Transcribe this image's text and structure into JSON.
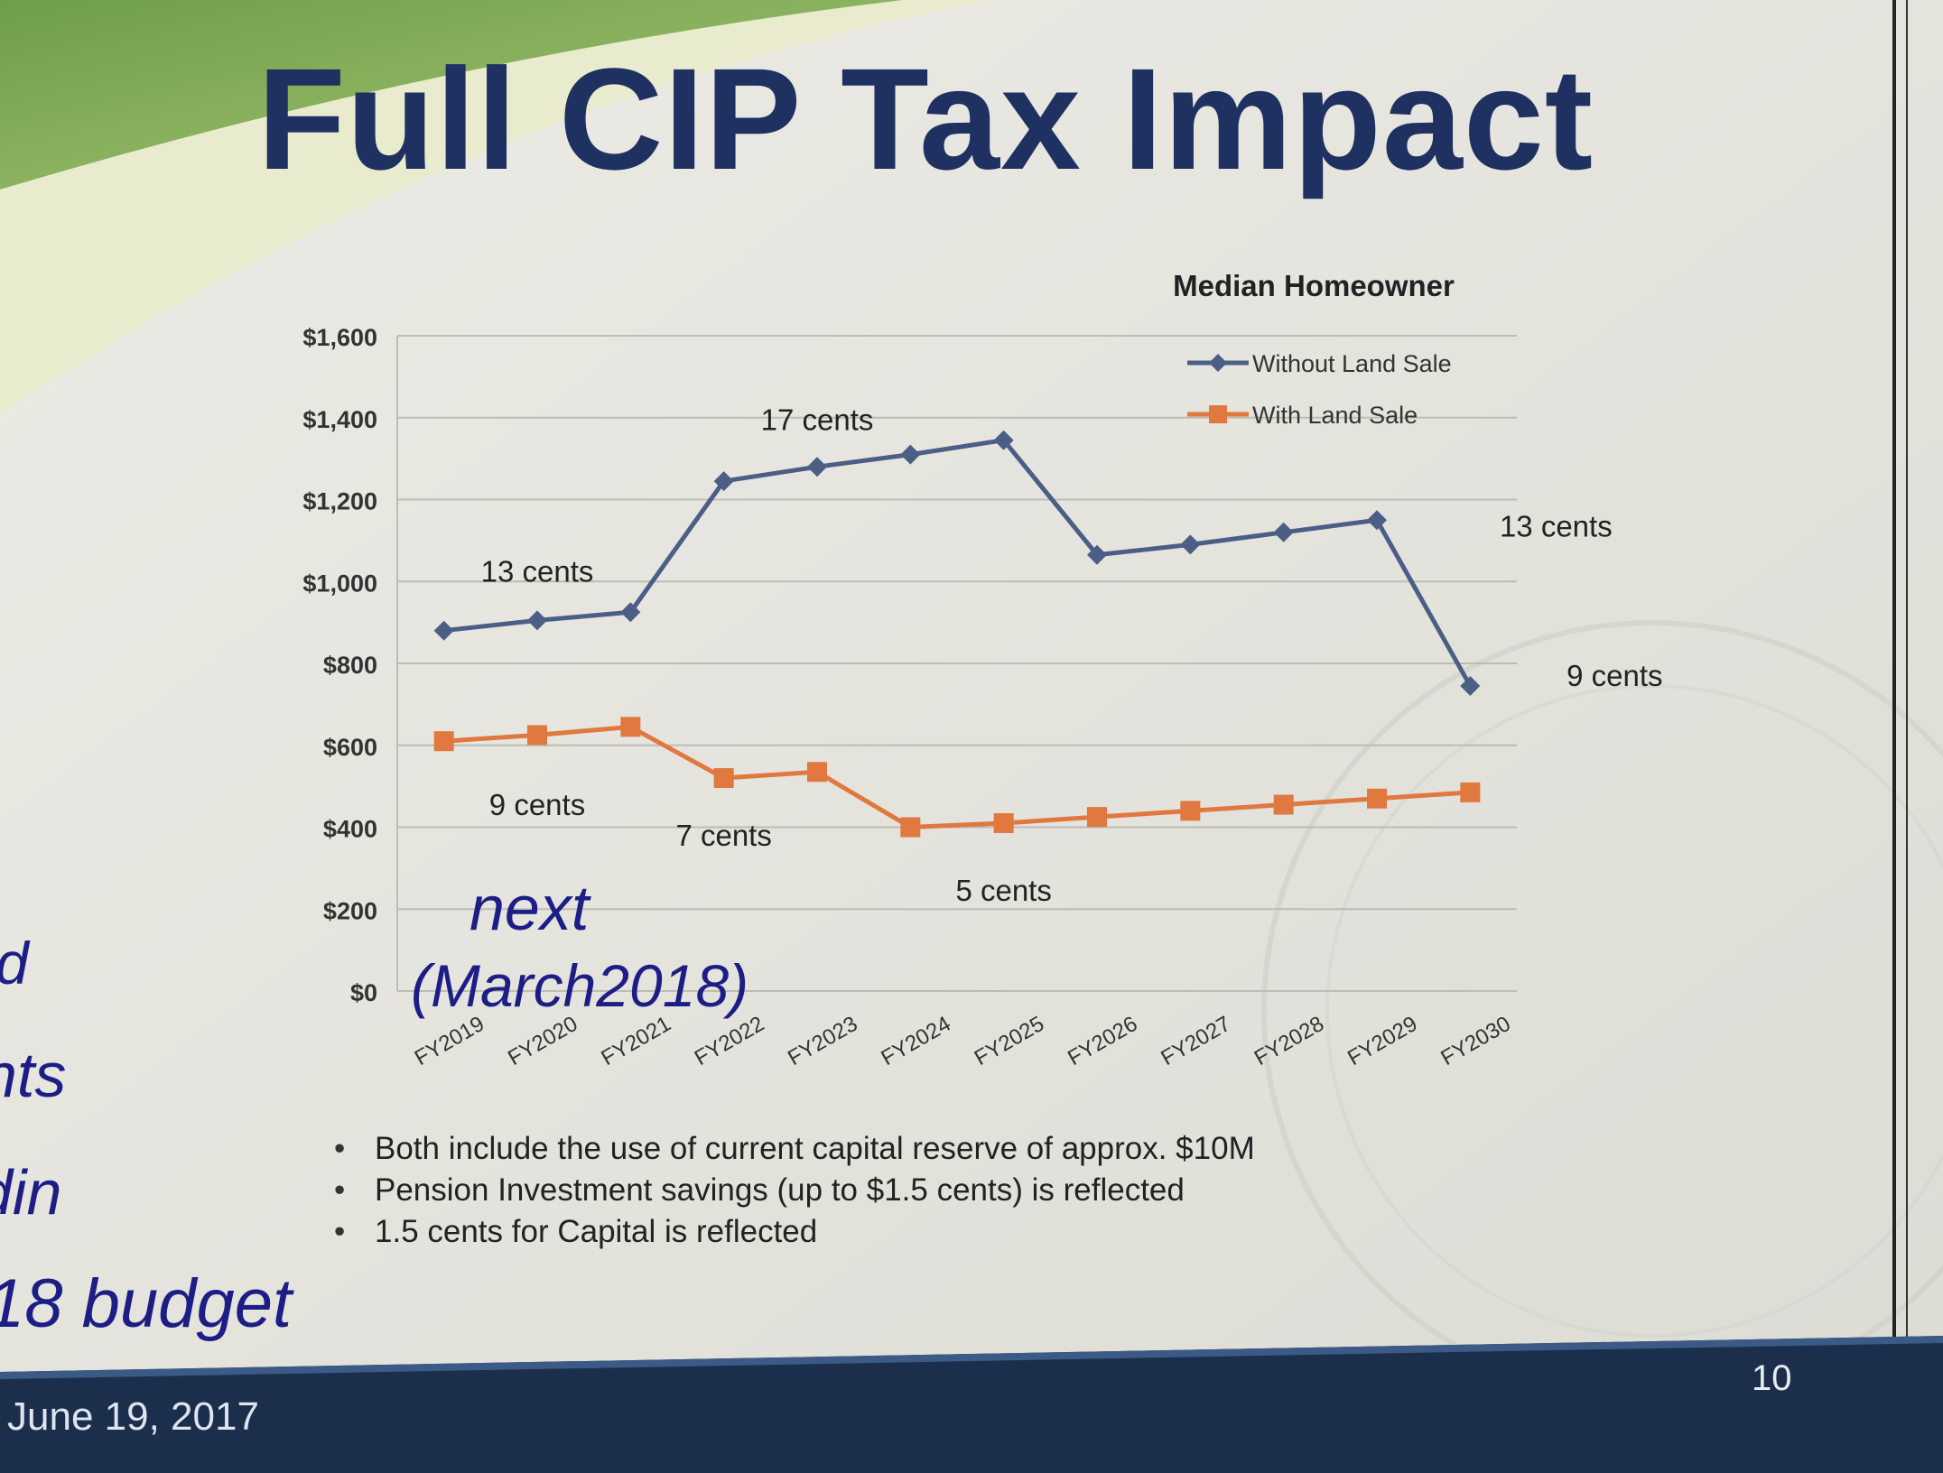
{
  "slide": {
    "title": "Full CIP Tax Impact",
    "bullets": [
      "Both include the use of current capital reserve of approx. $10M",
      "Pension Investment savings (up to $1.5 cents) is reflected",
      "1.5 cents for Capital is reflected"
    ],
    "footer_date": "June 19, 2017",
    "page_number": "10",
    "handwritten_note": [
      "next",
      "(March2018)"
    ],
    "handwritten_margin": [
      "d",
      "nts",
      "din",
      "18 budget"
    ],
    "colors": {
      "title": "#1f3160",
      "footer_bar": "#1b2f4d",
      "series_without": "#4a5e86",
      "series_with": "#e0783f",
      "ink": "#1c1e86"
    }
  },
  "chart_data": {
    "type": "line",
    "title": "Median Homeowner",
    "xlabel": "",
    "ylabel": "",
    "ylim": [
      0,
      1600
    ],
    "y_ticks": [
      0,
      200,
      400,
      600,
      800,
      1000,
      1200,
      1400,
      1600
    ],
    "y_tick_labels": [
      "$0",
      "$200",
      "$400",
      "$600",
      "$800",
      "$1,000",
      "$1,200",
      "$1,400",
      "$1,600"
    ],
    "categories": [
      "FY2019",
      "FY2020",
      "FY2021",
      "FY2022",
      "FY2023",
      "FY2024",
      "FY2025",
      "FY2026",
      "FY2027",
      "FY2028",
      "FY2029",
      "FY2030"
    ],
    "grid": true,
    "legend_position": "top-right",
    "series": [
      {
        "name": "Without Land Sale",
        "color": "#4a5e86",
        "marker": "diamond",
        "values": [
          880,
          905,
          925,
          1245,
          1280,
          1310,
          1345,
          1065,
          1090,
          1120,
          1150,
          745
        ]
      },
      {
        "name": "With Land Sale",
        "color": "#e0783f",
        "marker": "square",
        "values": [
          610,
          625,
          645,
          520,
          535,
          400,
          410,
          425,
          440,
          455,
          470,
          485
        ]
      }
    ],
    "annotations": [
      {
        "text": "13 cents",
        "x": "FY2020",
        "y": 1000
      },
      {
        "text": "17 cents",
        "x": "FY2023",
        "y": 1370
      },
      {
        "text": "13 cents",
        "x": "FY2030",
        "y": 1110
      },
      {
        "text": "9 cents",
        "x": "FY2030",
        "y": 745
      },
      {
        "text": "9 cents",
        "x": "FY2020",
        "y": 430
      },
      {
        "text": "7 cents",
        "x": "FY2022",
        "y": 355
      },
      {
        "text": "5 cents",
        "x": "FY2025",
        "y": 220
      }
    ]
  }
}
